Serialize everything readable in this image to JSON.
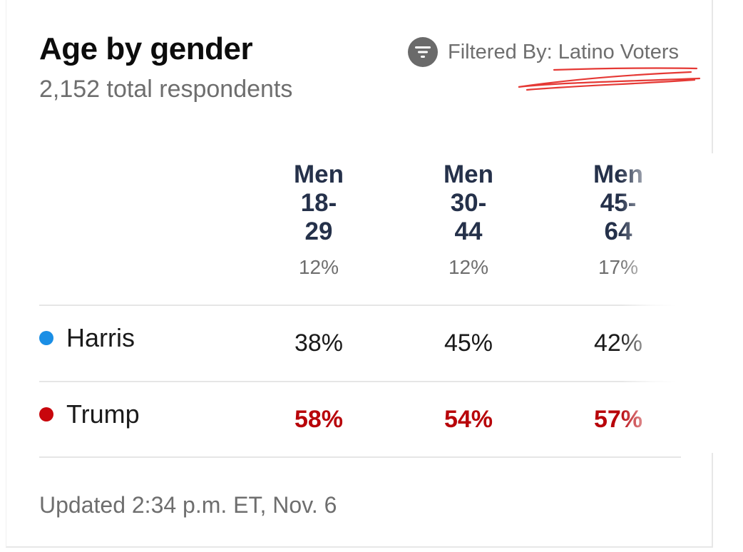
{
  "card": {
    "title": "Age by gender",
    "subtitle": "2,152 total respondents",
    "filter": {
      "icon": "filter-icon",
      "text": "Filtered By: Latino Voters"
    },
    "updated": "Updated 2:34 p.m. ET, Nov. 6"
  },
  "columns": [
    {
      "name": "Men\n18-\n29",
      "share": "12%"
    },
    {
      "name": "Men\n30-\n44",
      "share": "12%"
    },
    {
      "name": "Men\n45-\n64",
      "share": "17%"
    }
  ],
  "rows": [
    {
      "candidate": "Harris",
      "color": "#1a8ee5",
      "values": [
        "38%",
        "45%",
        "42%"
      ]
    },
    {
      "candidate": "Trump",
      "color": "#c8060c",
      "values": [
        "58%",
        "54%",
        "57%"
      ]
    }
  ],
  "colors": {
    "trump_value": "#b8040a",
    "annotation": "#e53935"
  }
}
